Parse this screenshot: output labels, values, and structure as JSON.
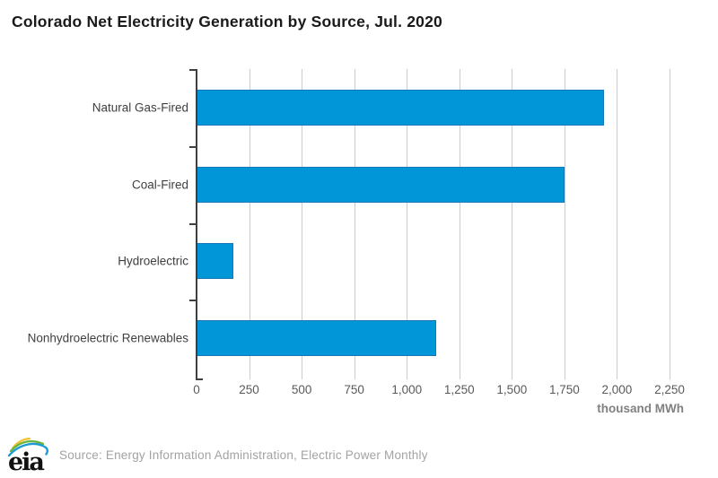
{
  "chart_data": {
    "type": "bar",
    "orientation": "horizontal",
    "title": "Colorado Net Electricity Generation by Source, Jul. 2020",
    "categories": [
      "Natural Gas-Fired",
      "Coal-Fired",
      "Hydroelectric",
      "Nonhydroelectric Renewables"
    ],
    "values": [
      1940,
      1750,
      175,
      1140
    ],
    "xlabel": "thousand MWh",
    "ylabel": "",
    "xlim": [
      0,
      2250
    ],
    "x_tick_values": [
      0,
      250,
      500,
      750,
      1000,
      1250,
      1500,
      1750,
      2000,
      2250
    ],
    "x_tick_labels": [
      "0",
      "250",
      "500",
      "750",
      "1,000",
      "1,250",
      "1,500",
      "1,750",
      "2,000",
      "2,250"
    ],
    "grid": "vertical-gridlines",
    "legend": "none"
  },
  "colors": {
    "bar_fill": "#0096D7",
    "bar_border": "#1678B4",
    "gridline": "#CCCCCC",
    "axis": "#3F3F3F",
    "tick_text": "#595959",
    "category_text": "#3F3F3F",
    "title_text": "#1A1A1A",
    "unit_text": "#808080",
    "source_text": "#A3A3A3",
    "logo_green": "#6DB33F",
    "logo_blue": "#1C9AD6",
    "logo_yellow": "#F4C430",
    "logo_text": "#111111"
  },
  "footer": {
    "logo": "eia-logo",
    "source": "Source: Energy Information Administration, Electric Power Monthly"
  }
}
